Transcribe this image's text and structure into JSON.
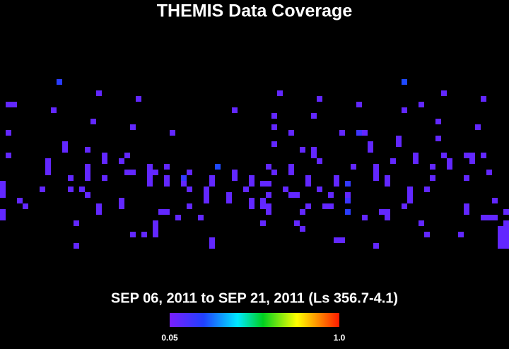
{
  "title": "THEMIS Data Coverage",
  "subtitle": "SEP 06, 2011 to SEP 21, 2011 (Ls 356.7-4.1)",
  "colorbar": {
    "range": [
      0.05,
      1
    ],
    "ticks": [
      0.05,
      {
        "value": 1,
        "label": "1.0"
      }
    ]
  },
  "cells": [
    [
      10,
      14,
      0.22
    ],
    [
      17,
      16,
      0.1
    ],
    [
      24,
      17,
      0.1
    ],
    [
      1,
      18,
      0.1
    ],
    [
      2,
      18,
      0.1
    ],
    [
      9,
      19,
      0.1
    ],
    [
      16,
      21,
      0.1
    ],
    [
      23,
      22,
      0.1
    ],
    [
      1,
      23,
      0.1
    ],
    [
      11,
      25,
      0.1
    ],
    [
      11,
      26,
      0.1
    ],
    [
      15,
      26,
      0.1
    ],
    [
      18,
      27,
      0.1
    ],
    [
      18,
      28,
      0.1
    ],
    [
      1,
      27,
      0.1
    ],
    [
      8,
      28,
      0.1
    ],
    [
      8,
      29,
      0.1
    ],
    [
      8,
      30,
      0.1
    ],
    [
      15,
      29,
      0.1
    ],
    [
      15,
      30,
      0.1
    ],
    [
      15,
      31,
      0.1
    ],
    [
      22,
      27,
      0.1
    ],
    [
      21,
      28,
      0.1
    ],
    [
      0,
      32,
      0.1
    ],
    [
      0,
      33,
      0.1
    ],
    [
      0,
      34,
      0.1
    ],
    [
      0,
      37,
      0.1
    ],
    [
      0,
      38,
      0.1
    ],
    [
      3,
      35,
      0.1
    ],
    [
      4,
      36,
      0.1
    ],
    [
      7,
      33,
      0.1
    ],
    [
      12,
      31,
      0.1
    ],
    [
      12,
      33,
      0.1
    ],
    [
      14,
      33,
      0.1
    ],
    [
      15,
      34,
      0.1
    ],
    [
      17,
      36,
      0.1
    ],
    [
      17,
      37,
      0.1
    ],
    [
      18,
      31,
      0.1
    ],
    [
      21,
      35,
      0.1
    ],
    [
      21,
      36,
      0.1
    ],
    [
      22,
      30,
      0.1
    ],
    [
      23,
      30,
      0.1
    ],
    [
      26,
      29,
      0.1
    ],
    [
      26,
      30,
      0.1
    ],
    [
      26,
      31,
      0.1
    ],
    [
      26,
      32,
      0.1
    ],
    [
      27,
      30,
      0.1
    ],
    [
      29,
      29,
      0.1
    ],
    [
      29,
      31,
      0.1
    ],
    [
      29,
      32,
      0.1
    ],
    [
      32,
      31,
      0.2
    ],
    [
      32,
      32,
      0.1
    ],
    [
      33,
      30,
      0.1
    ],
    [
      33,
      33,
      0.1
    ],
    [
      28,
      37,
      0.1
    ],
    [
      29,
      37,
      0.1
    ],
    [
      31,
      38,
      0.1
    ],
    [
      33,
      36,
      0.1
    ],
    [
      35,
      38,
      0.1
    ],
    [
      27,
      39,
      0.1
    ],
    [
      27,
      40,
      0.1
    ],
    [
      27,
      41,
      0.1
    ],
    [
      25,
      41,
      0.1
    ],
    [
      23,
      41,
      0.1
    ],
    [
      13,
      39,
      0.1
    ],
    [
      13,
      43,
      0.1
    ],
    [
      37,
      42,
      0.1
    ],
    [
      37,
      43,
      0.1
    ],
    [
      30,
      23,
      0.1
    ],
    [
      41,
      19,
      0.1
    ],
    [
      49,
      16,
      0.1
    ],
    [
      56,
      17,
      0.1
    ],
    [
      48,
      20,
      0.1
    ],
    [
      48,
      22,
      0.1
    ],
    [
      48,
      25,
      0.1
    ],
    [
      55,
      20,
      0.1
    ],
    [
      51,
      23,
      0.1
    ],
    [
      60,
      23,
      0.1
    ],
    [
      63,
      23,
      0.18
    ],
    [
      64,
      23,
      0.1
    ],
    [
      65,
      25,
      0.1
    ],
    [
      65,
      26,
      0.1
    ],
    [
      70,
      24,
      0.1
    ],
    [
      70,
      25,
      0.1
    ],
    [
      71,
      14,
      0.25
    ],
    [
      78,
      16,
      0.1
    ],
    [
      85,
      17,
      0.1
    ],
    [
      77,
      21,
      0.1
    ],
    [
      77,
      24,
      0.1
    ],
    [
      84,
      22,
      0.1
    ],
    [
      63,
      18,
      0.1
    ],
    [
      71,
      19,
      0.1
    ],
    [
      74,
      18,
      0.1
    ],
    [
      53,
      26,
      0.1
    ],
    [
      55,
      26,
      0.1
    ],
    [
      55,
      27,
      0.1
    ],
    [
      56,
      28,
      0.1
    ],
    [
      47,
      29,
      0.1
    ],
    [
      48,
      30,
      0.1
    ],
    [
      51,
      29,
      0.1
    ],
    [
      51,
      30,
      0.1
    ],
    [
      44,
      31,
      0.1
    ],
    [
      44,
      32,
      0.1
    ],
    [
      43,
      33,
      0.1
    ],
    [
      41,
      30,
      0.1
    ],
    [
      41,
      31,
      0.1
    ],
    [
      38,
      29,
      0.25
    ],
    [
      37,
      31,
      0.1
    ],
    [
      37,
      32,
      0.1
    ],
    [
      36,
      33,
      0.1
    ],
    [
      36,
      34,
      0.1
    ],
    [
      36,
      35,
      0.1
    ],
    [
      40,
      34,
      0.1
    ],
    [
      40,
      35,
      0.1
    ],
    [
      46,
      32,
      0.1
    ],
    [
      47,
      32,
      0.1
    ],
    [
      47,
      34,
      0.1
    ],
    [
      46,
      35,
      0.1
    ],
    [
      46,
      36,
      0.1
    ],
    [
      47,
      36,
      0.1
    ],
    [
      47,
      37,
      0.1
    ],
    [
      50,
      33,
      0.1
    ],
    [
      51,
      34,
      0.1
    ],
    [
      52,
      34,
      0.1
    ],
    [
      54,
      31,
      0.1
    ],
    [
      54,
      32,
      0.1
    ],
    [
      53,
      37,
      0.1
    ],
    [
      52,
      39,
      0.1
    ],
    [
      53,
      40,
      0.1
    ],
    [
      56,
      33,
      0.1
    ],
    [
      58,
      34,
      0.1
    ],
    [
      58,
      36,
      0.1
    ],
    [
      57,
      36,
      0.1
    ],
    [
      59,
      31,
      0.1
    ],
    [
      59,
      32,
      0.1
    ],
    [
      61,
      32,
      0.2
    ],
    [
      61,
      34,
      0.1
    ],
    [
      61,
      35,
      0.18
    ],
    [
      61,
      37,
      0.22
    ],
    [
      62,
      29,
      0.1
    ],
    [
      66,
      29,
      0.1
    ],
    [
      66,
      30,
      0.1
    ],
    [
      66,
      31,
      0.1
    ],
    [
      68,
      31,
      0.1
    ],
    [
      68,
      32,
      0.1
    ],
    [
      69,
      28,
      0.1
    ],
    [
      73,
      27,
      0.1
    ],
    [
      73,
      28,
      0.1
    ],
    [
      72,
      33,
      0.1
    ],
    [
      72,
      34,
      0.1
    ],
    [
      72,
      35,
      0.1
    ],
    [
      71,
      36,
      0.1
    ],
    [
      67,
      37,
      0.1
    ],
    [
      68,
      37,
      0.1
    ],
    [
      68,
      38,
      0.1
    ],
    [
      64,
      38,
      0.1
    ],
    [
      75,
      33,
      0.1
    ],
    [
      76,
      29,
      0.1
    ],
    [
      76,
      31,
      0.1
    ],
    [
      78,
      27,
      0.1
    ],
    [
      79,
      28,
      0.1
    ],
    [
      79,
      29,
      0.1
    ],
    [
      82,
      27,
      0.1
    ],
    [
      83,
      27,
      0.1
    ],
    [
      83,
      28,
      0.1
    ],
    [
      85,
      27,
      0.1
    ],
    [
      86,
      30,
      0.1
    ],
    [
      82,
      31,
      0.1
    ],
    [
      82,
      36,
      0.1
    ],
    [
      82,
      37,
      0.1
    ],
    [
      87,
      35,
      0.1
    ],
    [
      85,
      38,
      0.1
    ],
    [
      86,
      38,
      0.1
    ],
    [
      87,
      38,
      0.1
    ],
    [
      89,
      37,
      0.1
    ],
    [
      74,
      39,
      0.1
    ],
    [
      75,
      41,
      0.1
    ],
    [
      81,
      41,
      0.1
    ],
    [
      88,
      40,
      0.1
    ],
    [
      88,
      41,
      0.1
    ],
    [
      88,
      42,
      0.1
    ],
    [
      88,
      43,
      0.1
    ],
    [
      89,
      39,
      0.1
    ],
    [
      89,
      40,
      0.1
    ],
    [
      89,
      41,
      0.1
    ],
    [
      89,
      42,
      0.1
    ],
    [
      89,
      43,
      0.1
    ],
    [
      66,
      43,
      0.1
    ],
    [
      59,
      42,
      0.1
    ],
    [
      60,
      42,
      0.1
    ],
    [
      46,
      39,
      0.1
    ],
    [
      44,
      35,
      0.1
    ],
    [
      44,
      36,
      0.1
    ],
    [
      54,
      36,
      0.1
    ]
  ]
}
